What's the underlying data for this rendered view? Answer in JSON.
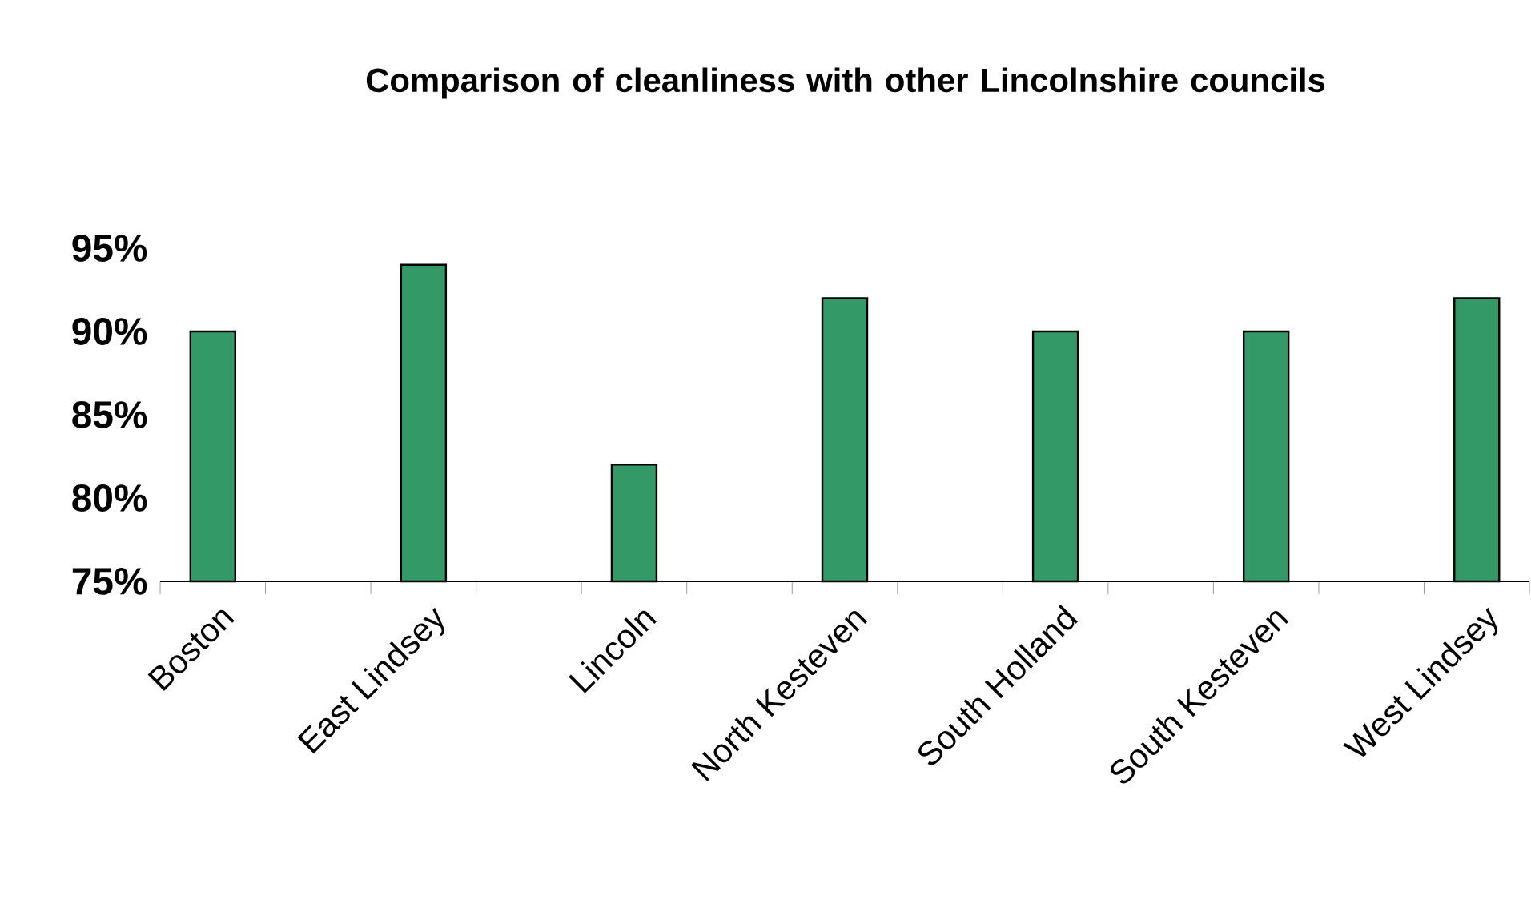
{
  "chart_data": {
    "type": "bar",
    "title": "Comparison of cleanliness with other Lincolnshire councils",
    "categories": [
      "Boston",
      null,
      "East Lindsey",
      null,
      "Lincoln",
      null,
      "North Kesteven",
      null,
      "South Holland",
      null,
      "South Kesteven",
      null,
      "West Lindsey"
    ],
    "values": [
      90,
      null,
      94,
      null,
      82,
      null,
      92,
      null,
      90,
      null,
      90,
      null,
      92
    ],
    "color": "#339966",
    "ylim": [
      75,
      95
    ],
    "yticks": [
      {
        "value": 75,
        "label": "75%"
      },
      {
        "value": 80,
        "label": "80%"
      },
      {
        "value": 85,
        "label": "85%"
      },
      {
        "value": 90,
        "label": "90%"
      },
      {
        "value": 95,
        "label": "95%"
      }
    ]
  }
}
